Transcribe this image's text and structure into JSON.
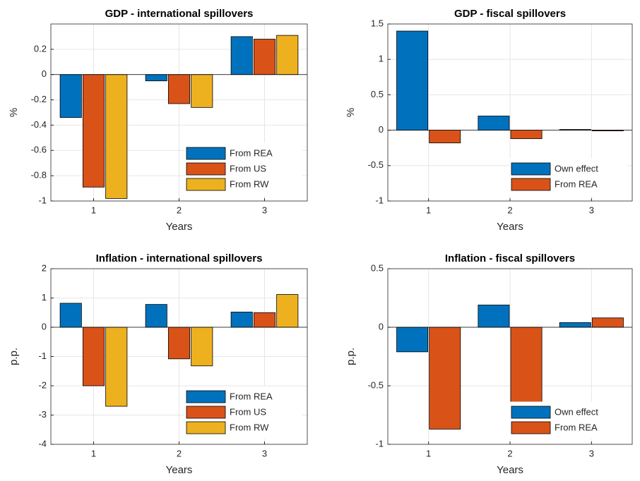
{
  "chart_data": [
    {
      "type": "bar",
      "title": "GDP - international spillovers",
      "xlabel": "Years",
      "ylabel": "%",
      "x": [
        1,
        2,
        3
      ],
      "xlim": [
        0.5,
        3.5
      ],
      "xticks": [
        1,
        2,
        3
      ],
      "ylim": [
        -1,
        0.4
      ],
      "yticks": [
        -1,
        -0.8,
        -0.6,
        -0.4,
        -0.2,
        0,
        0.2
      ],
      "grid": true,
      "legend": "southeast",
      "series": [
        {
          "name": "From REA",
          "color": "#0072bd",
          "values": [
            -0.34,
            -0.05,
            0.3
          ]
        },
        {
          "name": "From US",
          "color": "#d95319",
          "values": [
            -0.89,
            -0.23,
            0.28
          ]
        },
        {
          "name": "From RW",
          "color": "#edb120",
          "values": [
            -0.98,
            -0.26,
            0.31
          ]
        }
      ]
    },
    {
      "type": "bar",
      "title": "GDP - fiscal spillovers",
      "xlabel": "Years",
      "ylabel": "%",
      "x": [
        1,
        2,
        3
      ],
      "xlim": [
        0.5,
        3.5
      ],
      "xticks": [
        1,
        2,
        3
      ],
      "ylim": [
        -1,
        1.5
      ],
      "yticks": [
        -1,
        -0.5,
        0,
        0.5,
        1,
        1.5
      ],
      "grid": true,
      "legend": "southeast",
      "series": [
        {
          "name": "Own effect",
          "color": "#0072bd",
          "values": [
            1.4,
            0.2,
            0.01
          ]
        },
        {
          "name": "From REA",
          "color": "#d95319",
          "values": [
            -0.18,
            -0.12,
            -0.01
          ]
        }
      ]
    },
    {
      "type": "bar",
      "title": "Inflation - international spillovers",
      "xlabel": "Years",
      "ylabel": "p.p.",
      "x": [
        1,
        2,
        3
      ],
      "xlim": [
        0.5,
        3.5
      ],
      "xticks": [
        1,
        2,
        3
      ],
      "ylim": [
        -4,
        2
      ],
      "yticks": [
        -4,
        -3,
        -2,
        -1,
        0,
        1,
        2
      ],
      "grid": true,
      "legend": "southeast",
      "series": [
        {
          "name": "From REA",
          "color": "#0072bd",
          "values": [
            0.82,
            0.78,
            0.52
          ]
        },
        {
          "name": "From US",
          "color": "#d95319",
          "values": [
            -2.0,
            -1.08,
            0.5
          ]
        },
        {
          "name": "From RW",
          "color": "#edb120",
          "values": [
            -2.7,
            -1.32,
            1.12
          ]
        }
      ]
    },
    {
      "type": "bar",
      "title": "Inflation - fiscal spillovers",
      "xlabel": "Years",
      "ylabel": "p.p.",
      "x": [
        1,
        2,
        3
      ],
      "xlim": [
        0.5,
        3.5
      ],
      "xticks": [
        1,
        2,
        3
      ],
      "ylim": [
        -1,
        0.5
      ],
      "yticks": [
        -1,
        -0.5,
        0,
        0.5
      ],
      "grid": true,
      "legend": "southeast",
      "series": [
        {
          "name": "Own effect",
          "color": "#0072bd",
          "values": [
            -0.21,
            0.19,
            0.04
          ]
        },
        {
          "name": "From REA",
          "color": "#d95319",
          "values": [
            -0.87,
            -0.66,
            0.08
          ]
        }
      ]
    }
  ]
}
